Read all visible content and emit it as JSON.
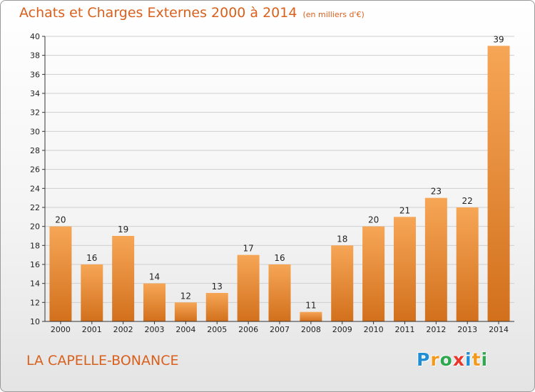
{
  "header": {
    "title": "Achats et Charges Externes 2000 à 2014",
    "unit": "(en milliers d'€)"
  },
  "footer": {
    "commune": "LA CAPELLE-BONANCE",
    "logo_letters": [
      "P",
      "r",
      "o",
      "x",
      "i",
      "t",
      "i"
    ],
    "logo_colors": [
      "#1e8fd6",
      "#f39a1e",
      "#2fa84f",
      "#e8372b",
      "#1e8fd6",
      "#f39a1e",
      "#2fa84f"
    ]
  },
  "colors": {
    "bar_light": "#f6a656",
    "bar_dark": "#d2701c",
    "axis": "#333333",
    "grid": "#cfcfcf",
    "accent": "#d9601c"
  },
  "chart_data": {
    "type": "bar",
    "title": "Achats et Charges Externes 2000 à 2014",
    "subtitle": "(en milliers d'€)",
    "xlabel": "",
    "ylabel": "",
    "categories": [
      "2000",
      "2001",
      "2002",
      "2003",
      "2004",
      "2005",
      "2006",
      "2007",
      "2008",
      "2009",
      "2010",
      "2011",
      "2012",
      "2013",
      "2014"
    ],
    "values": [
      20,
      16,
      19,
      14,
      12,
      13,
      17,
      16,
      11,
      18,
      20,
      21,
      23,
      22,
      39
    ],
    "ylim": [
      10,
      40
    ],
    "yticks": [
      10,
      12,
      14,
      16,
      18,
      20,
      22,
      24,
      26,
      28,
      30,
      32,
      34,
      36,
      38,
      40
    ],
    "grid": true,
    "data_labels": true,
    "legend": "none"
  }
}
